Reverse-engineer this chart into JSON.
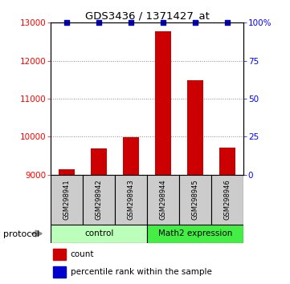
{
  "title": "GDS3436 / 1371427_at",
  "samples": [
    "GSM298941",
    "GSM298942",
    "GSM298943",
    "GSM298944",
    "GSM298945",
    "GSM298946"
  ],
  "counts": [
    9150,
    9700,
    9980,
    12780,
    11480,
    9720
  ],
  "percentile_ranks": [
    100,
    100,
    100,
    100,
    100,
    100
  ],
  "ylim_left": [
    9000,
    13000
  ],
  "ylim_right": [
    0,
    100
  ],
  "yticks_left": [
    9000,
    10000,
    11000,
    12000,
    13000
  ],
  "yticks_right": [
    0,
    25,
    50,
    75,
    100
  ],
  "ytick_labels_right": [
    "0",
    "25",
    "50",
    "75",
    "100%"
  ],
  "bar_color": "#cc0000",
  "marker_color": "#0000cc",
  "grid_color": "#888888",
  "sample_box_color": "#cccccc",
  "group_control_color": "#bbffbb",
  "group_expr_color": "#44ee44",
  "protocol_label": "protocol",
  "legend_count": "count",
  "legend_percentile": "percentile rank within the sample",
  "bar_width": 0.5
}
